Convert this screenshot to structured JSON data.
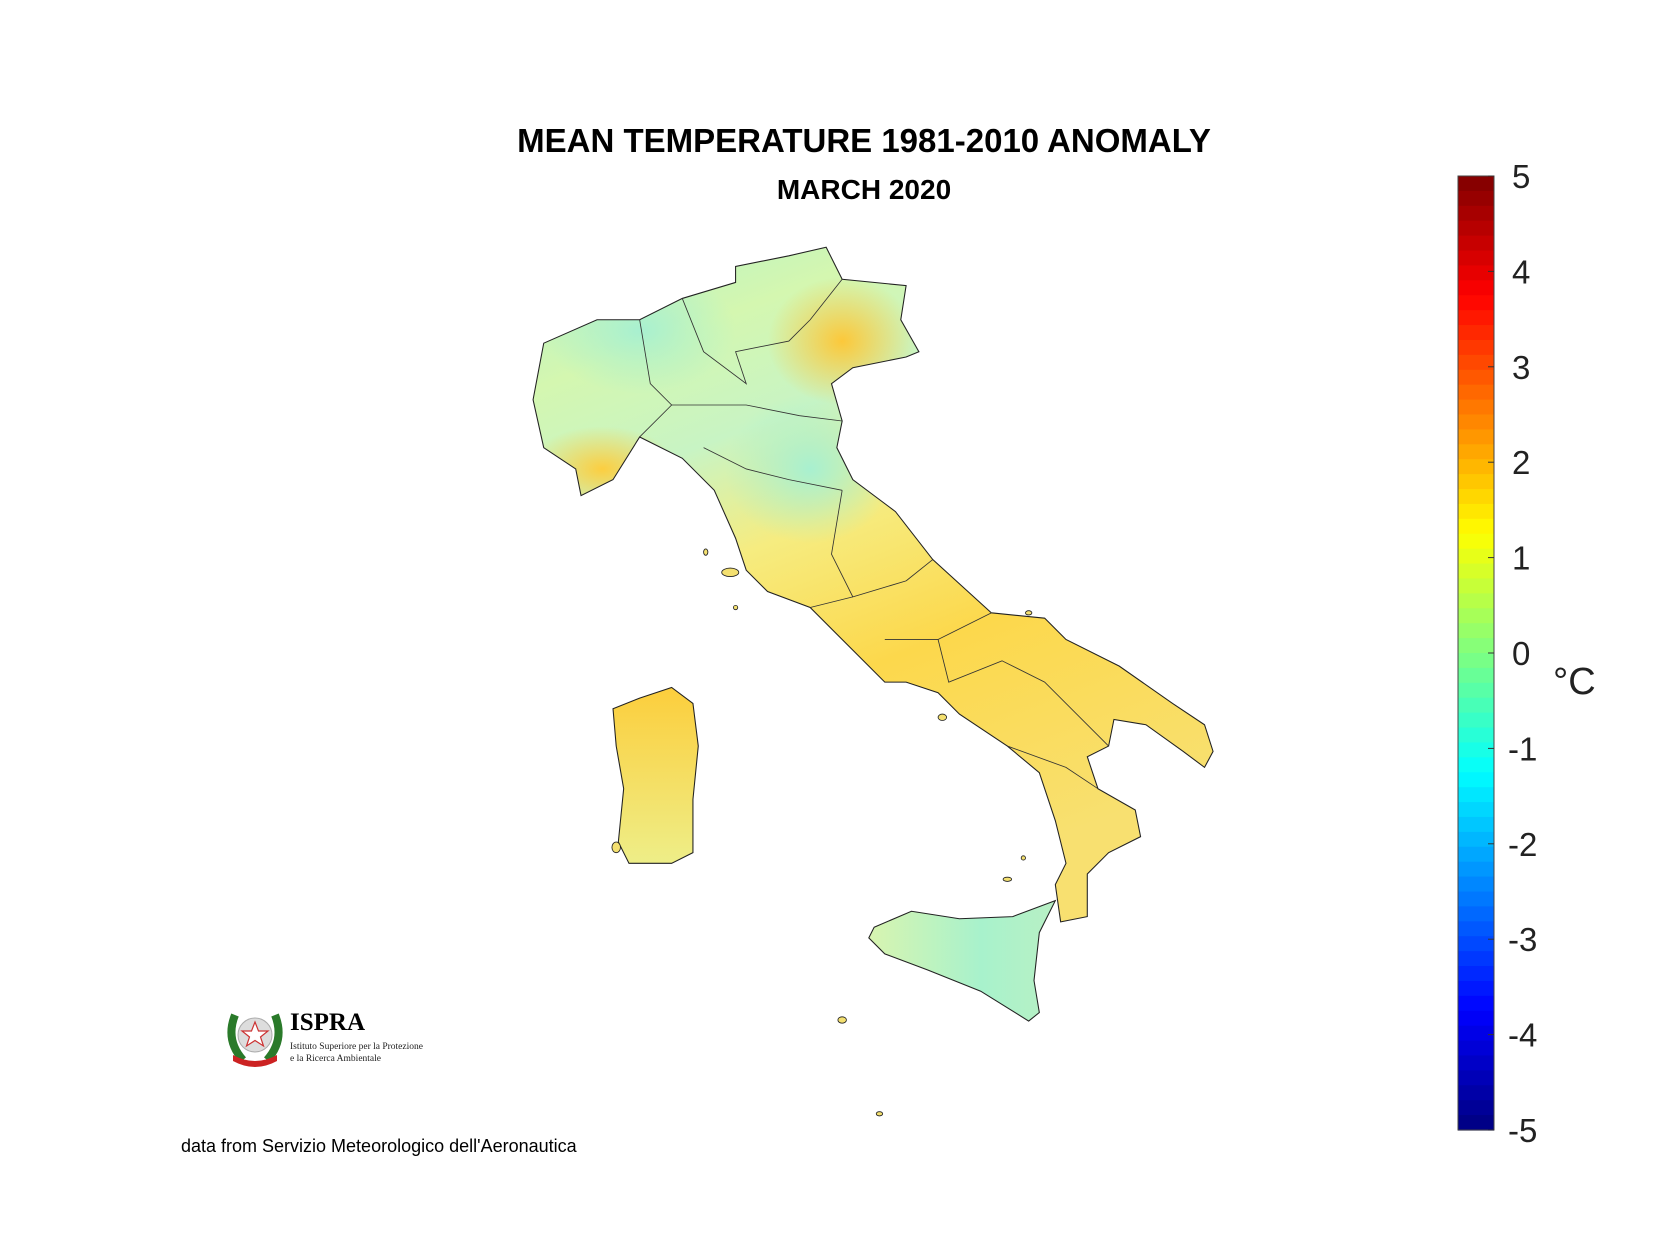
{
  "title": "MEAN TEMPERATURE 1981-2010 ANOMALY",
  "subtitle": "MARCH 2020",
  "footer": "data from Servizio Meteorologico dell'Aeronautica",
  "logo": {
    "name": "ISPRA",
    "line1": "Istituto Superiore per la Protezione",
    "line2": "e la Ricerca Ambientale"
  },
  "chart_data": {
    "type": "heatmap",
    "title": "MEAN TEMPERATURE 1981-2010 ANOMALY",
    "subtitle": "MARCH 2020",
    "colorbar": {
      "label": "°C",
      "range": [
        -5,
        5
      ],
      "ticks": [
        5,
        4,
        3,
        2,
        1,
        0,
        -1,
        -2,
        -3,
        -4,
        -5
      ],
      "colormap": "jet",
      "placement": "right"
    },
    "regions_summary": [
      {
        "area": "North-west Alps",
        "anomaly_approx": -0.3
      },
      {
        "area": "North-east / Veneto coast",
        "anomaly_approx": 1.0
      },
      {
        "area": "Liguria",
        "anomaly_approx": 1.0
      },
      {
        "area": "Emilia-Romagna / Marche inland",
        "anomaly_approx": -0.3
      },
      {
        "area": "Tyrrhenian centre-south",
        "anomaly_approx": 0.8
      },
      {
        "area": "Puglia",
        "anomaly_approx": 0.3
      },
      {
        "area": "Calabria",
        "anomaly_approx": 0.7
      },
      {
        "area": "Sardinia",
        "anomaly_approx": 0.9
      },
      {
        "area": "Sicily",
        "anomaly_approx": -0.2
      }
    ]
  }
}
